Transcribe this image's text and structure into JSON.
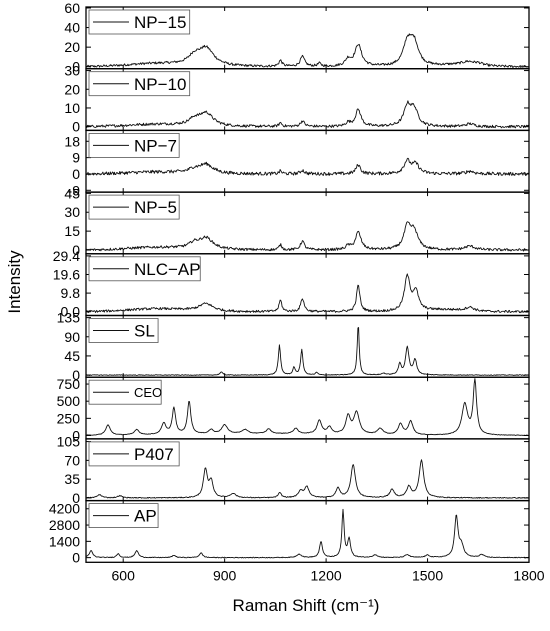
{
  "chart_data": {
    "type": "line",
    "xlabel": "Raman Shift (cm⁻¹)",
    "ylabel": "Intensity",
    "xlim": [
      490,
      1800
    ],
    "xticks": [
      "600",
      "900",
      "1200",
      "1500",
      "1800"
    ],
    "xtick_values": [
      600,
      900,
      1200,
      1500,
      1800
    ],
    "grid": false,
    "legend_placement": "top-left",
    "panels": [
      {
        "name": "NP−15",
        "ylim": [
          -2,
          61
        ],
        "yticks": [
          0,
          20,
          40,
          60
        ],
        "ytick_labels": [
          "0",
          "20",
          "40",
          "60"
        ],
        "baseline": 0,
        "noise": 1.2,
        "legend_font": 17,
        "peaks": [
          [
            845,
            18,
            28
          ],
          [
            810,
            8,
            20
          ],
          [
            1065,
            6,
            6
          ],
          [
            1130,
            10,
            8
          ],
          [
            1180,
            3,
            6
          ],
          [
            1265,
            7,
            10
          ],
          [
            1295,
            22,
            12
          ],
          [
            1440,
            22,
            14
          ],
          [
            1460,
            24,
            16
          ],
          [
            1620,
            3,
            20
          ],
          [
            1650,
            2,
            15
          ]
        ],
        "broad": [
          [
            700,
            3,
            120
          ],
          [
            1600,
            2,
            80
          ]
        ]
      },
      {
        "name": "NP−10",
        "ylim": [
          -2,
          31
        ],
        "yticks": [
          0,
          10,
          20,
          30
        ],
        "ytick_labels": [
          "0",
          "10",
          "20",
          "30"
        ],
        "baseline": 0,
        "noise": 0.7,
        "legend_font": 17,
        "peaks": [
          [
            845,
            7,
            25
          ],
          [
            810,
            3,
            18
          ],
          [
            1065,
            2,
            5
          ],
          [
            1130,
            3,
            7
          ],
          [
            1295,
            9,
            10
          ],
          [
            1265,
            2,
            8
          ],
          [
            1440,
            10,
            12
          ],
          [
            1460,
            9,
            14
          ],
          [
            1625,
            1.5,
            15
          ]
        ],
        "broad": [
          [
            700,
            1.2,
            120
          ]
        ]
      },
      {
        "name": "NP−7",
        "ylim": [
          -10,
          24
        ],
        "yticks": [
          -9,
          0,
          9,
          18
        ],
        "ytick_labels": [
          "-9",
          "0",
          "9",
          "18"
        ],
        "baseline": 0,
        "noise": 0.9,
        "legend_font": 17,
        "peaks": [
          [
            845,
            5,
            25
          ],
          [
            810,
            2,
            18
          ],
          [
            1065,
            1.5,
            5
          ],
          [
            1130,
            2,
            7
          ],
          [
            1295,
            5,
            8
          ],
          [
            1440,
            7,
            12
          ],
          [
            1465,
            5,
            12
          ],
          [
            1625,
            1.5,
            15
          ]
        ],
        "broad": [
          [
            700,
            1,
            120
          ]
        ]
      },
      {
        "name": "NP−5",
        "ylim": [
          -3,
          46
        ],
        "yticks": [
          0,
          15,
          30,
          45
        ],
        "ytick_labels": [
          "0",
          "15",
          "30",
          "45"
        ],
        "baseline": 0,
        "noise": 1.0,
        "legend_font": 17,
        "peaks": [
          [
            845,
            9,
            25
          ],
          [
            810,
            4,
            18
          ],
          [
            1065,
            4,
            5
          ],
          [
            1130,
            7,
            7
          ],
          [
            1265,
            3,
            8
          ],
          [
            1295,
            14,
            10
          ],
          [
            1440,
            17,
            12
          ],
          [
            1460,
            14,
            14
          ],
          [
            1625,
            3,
            18
          ]
        ],
        "broad": [
          [
            700,
            2,
            120
          ]
        ]
      },
      {
        "name": "NLC−AP",
        "ylim": [
          -2,
          30.5
        ],
        "yticks": [
          0,
          9.8,
          19.6,
          29.4
        ],
        "ytick_labels": [
          "0.0",
          "9.8",
          "19.6",
          "29.4"
        ],
        "baseline": 0,
        "noise": 0.6,
        "legend_font": 17,
        "peaks": [
          [
            845,
            4,
            25
          ],
          [
            1065,
            6,
            5
          ],
          [
            1130,
            7,
            6
          ],
          [
            1295,
            14,
            6
          ],
          [
            1440,
            18,
            10
          ],
          [
            1465,
            10,
            10
          ],
          [
            1625,
            2,
            15
          ]
        ],
        "broad": [
          [
            700,
            1.5,
            120
          ],
          [
            1550,
            1,
            80
          ]
        ]
      },
      {
        "name": "SL",
        "ylim": [
          -5,
          140
        ],
        "yticks": [
          0,
          45,
          90,
          135
        ],
        "ytick_labels": [
          "0",
          "45",
          "90",
          "135"
        ],
        "baseline": 0,
        "noise": 0.8,
        "legend_font": 17,
        "peaks": [
          [
            890,
            7,
            5
          ],
          [
            1062,
            70,
            4
          ],
          [
            1105,
            18,
            4
          ],
          [
            1128,
            60,
            4
          ],
          [
            1172,
            6,
            4
          ],
          [
            1295,
            120,
            3.5
          ],
          [
            1370,
            4,
            6
          ],
          [
            1418,
            25,
            5
          ],
          [
            1440,
            65,
            6
          ],
          [
            1463,
            35,
            6
          ]
        ],
        "broad": []
      },
      {
        "name": "CEO",
        "ylim": [
          -50,
          850
        ],
        "yticks": [
          0,
          250,
          500,
          750
        ],
        "ytick_labels": [
          "0",
          "250",
          "500",
          "750"
        ],
        "baseline": 0,
        "noise": 4,
        "legend_font": 13,
        "peaks": [
          [
            555,
            150,
            8
          ],
          [
            640,
            80,
            8
          ],
          [
            720,
            160,
            8
          ],
          [
            750,
            380,
            6
          ],
          [
            795,
            480,
            6
          ],
          [
            860,
            60,
            8
          ],
          [
            900,
            130,
            10
          ],
          [
            960,
            60,
            10
          ],
          [
            1030,
            70,
            8
          ],
          [
            1110,
            80,
            8
          ],
          [
            1180,
            200,
            8
          ],
          [
            1210,
            100,
            8
          ],
          [
            1265,
            260,
            8
          ],
          [
            1290,
            320,
            10
          ],
          [
            1360,
            90,
            10
          ],
          [
            1420,
            160,
            8
          ],
          [
            1450,
            200,
            8
          ],
          [
            1610,
            450,
            10
          ],
          [
            1640,
            780,
            6
          ]
        ],
        "broad": [
          [
            1000,
            25,
            300
          ]
        ]
      },
      {
        "name": "P407",
        "ylim": [
          -5,
          110
        ],
        "yticks": [
          0,
          35,
          70,
          105
        ],
        "ytick_labels": [
          "0",
          "35",
          "70",
          "105"
        ],
        "baseline": 0,
        "noise": 0.8,
        "legend_font": 17,
        "peaks": [
          [
            530,
            6,
            8
          ],
          [
            590,
            4,
            8
          ],
          [
            843,
            52,
            7
          ],
          [
            860,
            30,
            7
          ],
          [
            925,
            8,
            10
          ],
          [
            1063,
            9,
            6
          ],
          [
            1125,
            12,
            8
          ],
          [
            1143,
            20,
            8
          ],
          [
            1235,
            18,
            7
          ],
          [
            1280,
            62,
            8
          ],
          [
            1395,
            15,
            8
          ],
          [
            1445,
            20,
            8
          ],
          [
            1482,
            70,
            8
          ]
        ],
        "broad": []
      },
      {
        "name": "AP",
        "ylim": [
          -400,
          4900
        ],
        "yticks": [
          0,
          1400,
          2800,
          4200
        ],
        "ytick_labels": [
          "0",
          "1400",
          "2800",
          "4200"
        ],
        "baseline": 0,
        "noise": 30,
        "legend_font": 17,
        "peaks": [
          [
            505,
            600,
            6
          ],
          [
            585,
            350,
            5
          ],
          [
            640,
            600,
            6
          ],
          [
            750,
            200,
            6
          ],
          [
            830,
            400,
            6
          ],
          [
            1120,
            300,
            8
          ],
          [
            1185,
            1400,
            5
          ],
          [
            1250,
            4000,
            4
          ],
          [
            1268,
            1600,
            5
          ],
          [
            1345,
            250,
            8
          ],
          [
            1440,
            250,
            8
          ],
          [
            1500,
            200,
            8
          ],
          [
            1585,
            3500,
            6
          ],
          [
            1600,
            1000,
            8
          ],
          [
            1660,
            250,
            8
          ]
        ],
        "broad": []
      }
    ]
  }
}
